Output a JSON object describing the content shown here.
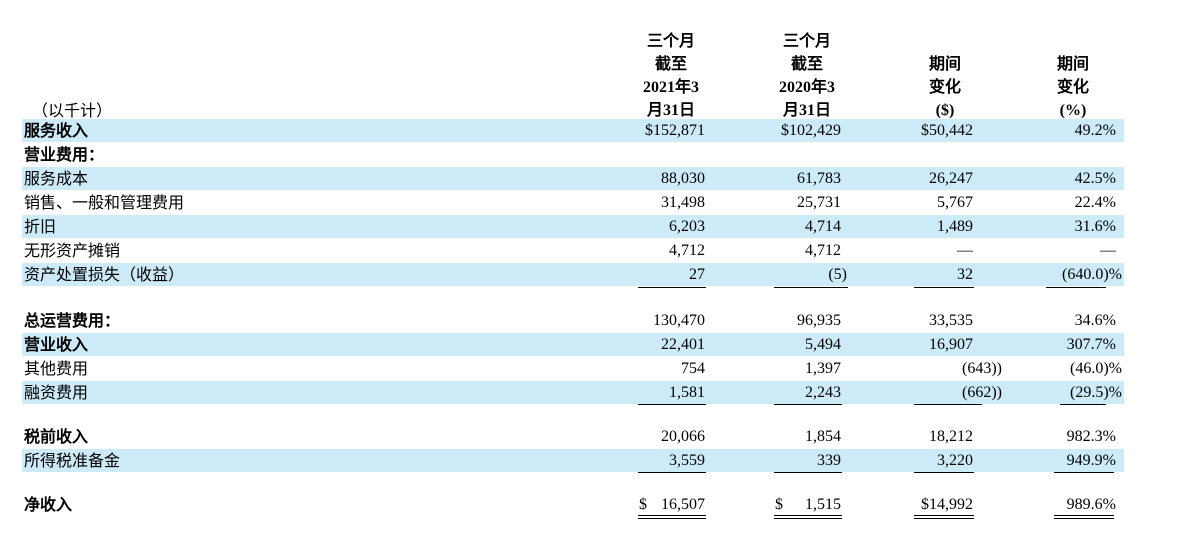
{
  "headers": {
    "col1": [
      "三个月",
      "截至",
      "2021年3",
      "月31日"
    ],
    "col2": [
      "三个月",
      "截至",
      "2020年3",
      "月31日"
    ],
    "col3": [
      "期间",
      "变化",
      "($)"
    ],
    "col4": [
      "期间",
      "变化",
      "(%)"
    ]
  },
  "units_label": "（以千计）",
  "rows": [
    {
      "label": "服务收入",
      "c1": "$152,871",
      "c2": "$102,429",
      "c3": "$50,442",
      "c4": "49.2%"
    },
    {
      "label": "营业费用："
    },
    {
      "label": "服务成本",
      "c1": "88,030",
      "c2": "61,783",
      "c3": "26,247",
      "c4": "42.5%"
    },
    {
      "label": "销售、一般和管理费用",
      "c1": "31,498",
      "c2": "25,731",
      "c3": "5,767",
      "c4": "22.4%"
    },
    {
      "label": "折旧",
      "c1": "6,203",
      "c2": "4,714",
      "c3": "1,489",
      "c4": "31.6%"
    },
    {
      "label": "无形资产摊销",
      "c1": "4,712",
      "c2": "4,712",
      "c3": "—",
      "c4": "—"
    },
    {
      "label": "资产处置损失（收益）",
      "c1": "27",
      "c2": "(5)",
      "c3": "32",
      "c4": "(640.0)%"
    },
    {
      "label": "总运营费用：",
      "c1": "130,470",
      "c2": "96,935",
      "c3": "33,535",
      "c4": "34.6%"
    },
    {
      "label": "营业收入",
      "c1": "22,401",
      "c2": "5,494",
      "c3": "16,907",
      "c4": "307.7%"
    },
    {
      "label": "其他费用",
      "c1": "754",
      "c2": "1,397",
      "c3": "(643))",
      "c4": "(46.0)%"
    },
    {
      "label": "融资费用",
      "c1": "1,581",
      "c2": "2,243",
      "c3": "(662))",
      "c4": "(29.5)%"
    },
    {
      "label": "税前收入",
      "c1": "20,066",
      "c2": "1,854",
      "c3": "18,212",
      "c4": "982.3%"
    },
    {
      "label": "所得税准备金",
      "c1": "3,559",
      "c2": "339",
      "c3": "3,220",
      "c4": "949.9%"
    },
    {
      "label": "净收入",
      "c1_dollar": "$",
      "c1": "16,507",
      "c2_dollar": "$",
      "c2": "1,515",
      "c3": "$14,992",
      "c4": "989.6%"
    }
  ]
}
